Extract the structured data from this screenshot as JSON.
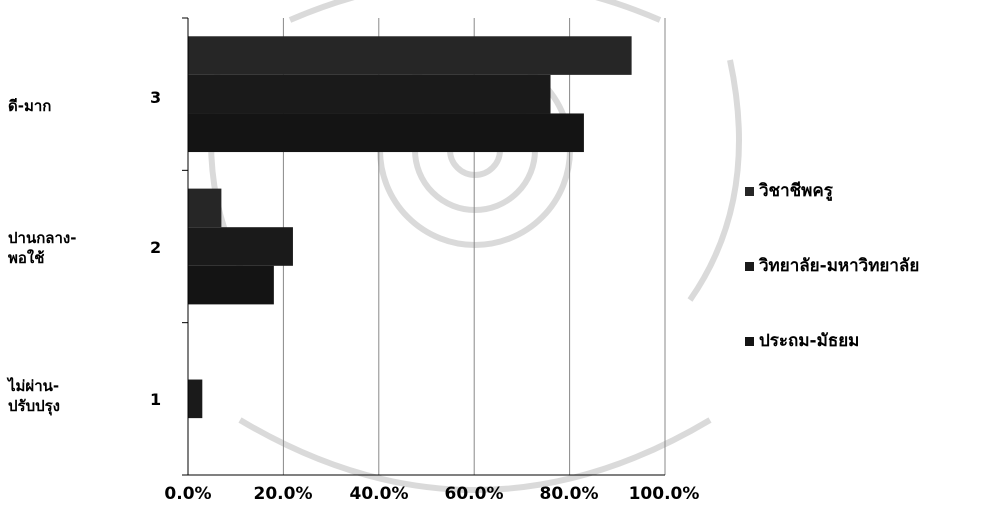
{
  "chart_data": {
    "type": "bar",
    "orientation": "horizontal",
    "categories": [
      "1",
      "2",
      "3"
    ],
    "category_labels": [
      [
        "ไม่ผ่าน-",
        "ปรับปรุง"
      ],
      [
        "ปานกลาง-",
        "พอใช้"
      ],
      [
        "ดี-มาก"
      ]
    ],
    "series": [
      {
        "name": "ประถม-มัธยม",
        "values": [
          0,
          18,
          83
        ],
        "color": "#141414"
      },
      {
        "name": "วิทยาลัย-มหาวิทยาลัย",
        "values": [
          3,
          22,
          76
        ],
        "color": "#1a1a1a"
      },
      {
        "name": "วิชาชีพครู",
        "values": [
          0,
          7,
          93
        ],
        "color": "#262626"
      }
    ],
    "x_ticks": [
      "0.0%",
      "20.0%",
      "40.0%",
      "60.0%",
      "80.0%",
      "100.0%"
    ],
    "xlim": [
      0,
      100
    ],
    "grid": "vertical",
    "legend": "right"
  }
}
